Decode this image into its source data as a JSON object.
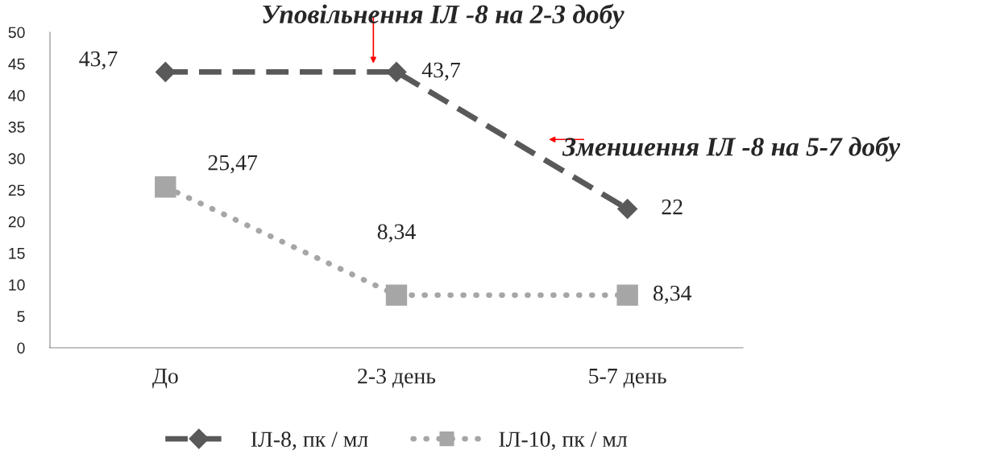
{
  "chart_data": {
    "type": "line",
    "categories": [
      "До",
      "2-3 день",
      "5-7 день"
    ],
    "series": [
      {
        "name": "ІЛ-8, пк / мл",
        "color": "#595959",
        "values": [
          43.7,
          43.7,
          22
        ],
        "value_labels": [
          "43,7",
          "43,7",
          "22"
        ],
        "marker": "diamond",
        "line_style": "dashed"
      },
      {
        "name": "ІЛ-10, пк / мл",
        "color": "#a6a6a6",
        "values": [
          25.47,
          8.34,
          8.34
        ],
        "value_labels": [
          "25,47",
          "8,34",
          "8,34"
        ],
        "marker": "square",
        "line_style": "dotted"
      }
    ],
    "ylim": [
      0,
      50
    ],
    "yticks": [
      0,
      5,
      10,
      15,
      20,
      25,
      30,
      35,
      40,
      45,
      50
    ],
    "grid": false,
    "legend": "bottom",
    "annotations": [
      {
        "text": "Уповільнення ІЛ -8 на 2-3 добу",
        "x": "2-3 день",
        "y": 43.7
      },
      "Зменшення ІЛ -8 на 5-7 добу"
    ]
  }
}
